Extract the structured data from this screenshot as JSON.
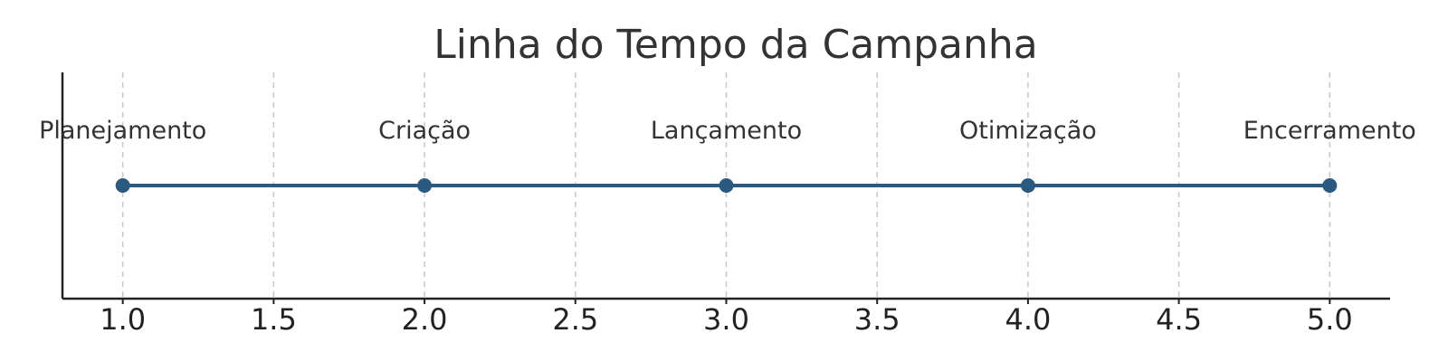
{
  "chart_data": {
    "type": "line",
    "title": "Linha do Tempo da Campanha",
    "xlabel": "",
    "ylabel": "",
    "xlim": [
      0.8,
      5.2
    ],
    "x_ticks": [
      "1.0",
      "1.5",
      "2.0",
      "2.5",
      "3.0",
      "3.5",
      "4.0",
      "4.5",
      "5.0"
    ],
    "x_tick_values": [
      1.0,
      1.5,
      2.0,
      2.5,
      3.0,
      3.5,
      4.0,
      4.5,
      5.0
    ],
    "grid": "x-dashed",
    "y_axis_visible": false,
    "events": [
      {
        "x": 1,
        "label": "Planejamento"
      },
      {
        "x": 2,
        "label": "Criação"
      },
      {
        "x": 3,
        "label": "Lançamento"
      },
      {
        "x": 4,
        "label": "Otimização"
      },
      {
        "x": 5,
        "label": "Encerramento"
      }
    ],
    "colors": {
      "line": "#2b5a80",
      "marker": "#2b5a80",
      "grid": "#c8c8c8",
      "axis": "#222222"
    }
  }
}
